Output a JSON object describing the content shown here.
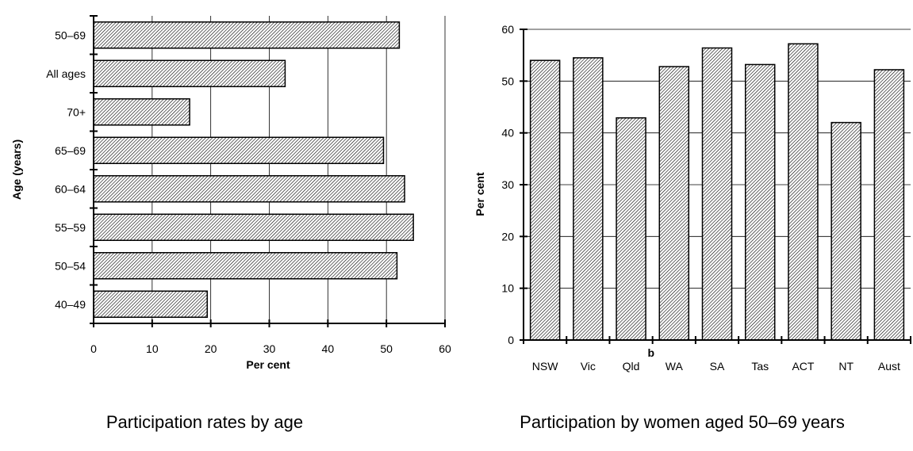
{
  "chart_data": [
    {
      "type": "bar",
      "orientation": "horizontal",
      "title": "Participation rates by age",
      "xlabel": "Per cent",
      "ylabel": "Age (years)",
      "xlim": [
        0,
        60
      ],
      "xticks": [
        0,
        10,
        20,
        30,
        40,
        50,
        60
      ],
      "grid": "vertical",
      "categories": [
        "50–69",
        "All ages",
        "70+",
        "65–69",
        "60–64",
        "55–59",
        "50–54",
        "40–49"
      ],
      "values": [
        52.2,
        32.7,
        16.4,
        49.5,
        53.1,
        54.6,
        51.8,
        19.4
      ]
    },
    {
      "type": "bar",
      "orientation": "vertical",
      "title": "Participation by women aged 50–69 years",
      "xlabel": "",
      "ylabel": "Per cent",
      "ylim": [
        0,
        60
      ],
      "yticks": [
        0,
        10,
        20,
        30,
        40,
        50,
        60
      ],
      "grid": "horizontal",
      "categories": [
        "NSW",
        "Vic",
        "Qld",
        "WA",
        "SA",
        "Tas",
        "ACT",
        "NT",
        "Aust"
      ],
      "values": [
        54.0,
        54.5,
        42.9,
        52.8,
        56.4,
        53.2,
        57.2,
        42.0,
        52.2
      ],
      "annotations": [
        {
          "category": "Qld",
          "text": "b"
        }
      ]
    }
  ]
}
